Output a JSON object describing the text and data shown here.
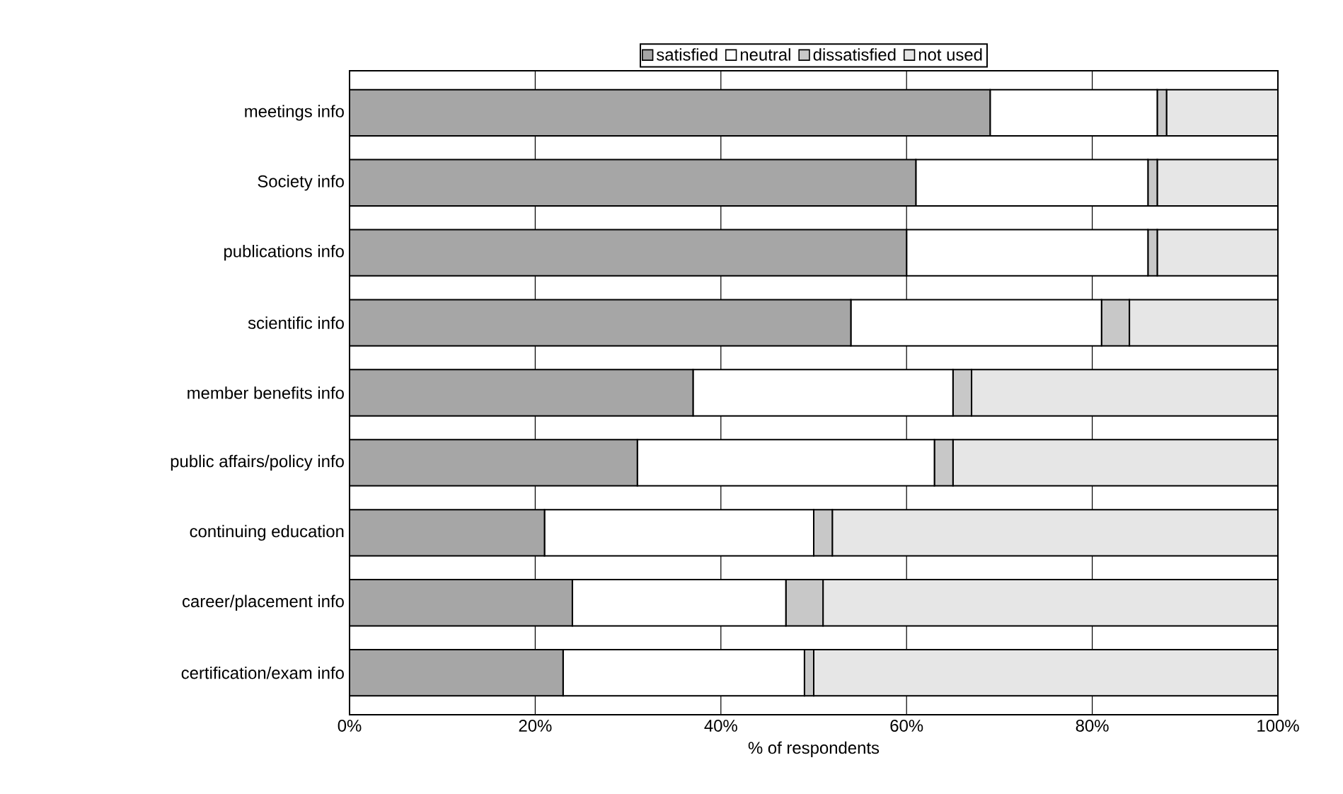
{
  "chart_data": {
    "type": "bar",
    "orientation": "horizontal",
    "stacked": true,
    "xlabel": "% of respondents",
    "categories": [
      "meetings info",
      "Society info",
      "publications info",
      "scientific info",
      "member benefits info",
      "public affairs/policy info",
      "continuing education",
      "career/placement info",
      "certification/exam info"
    ],
    "series": [
      {
        "name": "satisfied",
        "color": "#a6a6a6",
        "values": [
          69,
          61,
          60,
          54,
          37,
          31,
          21,
          24,
          23
        ]
      },
      {
        "name": "neutral",
        "color": "#ffffff",
        "values": [
          18,
          25,
          26,
          27,
          28,
          32,
          29,
          23,
          26
        ]
      },
      {
        "name": "dissatisfied",
        "color": "#c8c8c8",
        "values": [
          1,
          1,
          1,
          3,
          2,
          2,
          2,
          4,
          1
        ]
      },
      {
        "name": "not used",
        "color": "#e6e6e6",
        "values": [
          12,
          13,
          13,
          16,
          33,
          35,
          48,
          49,
          50
        ]
      }
    ],
    "xlim": [
      0,
      100
    ],
    "xticks": [
      {
        "value": 0,
        "label": "0%"
      },
      {
        "value": 20,
        "label": "20%"
      },
      {
        "value": 40,
        "label": "40%"
      },
      {
        "value": 60,
        "label": "60%"
      },
      {
        "value": 80,
        "label": "80%"
      },
      {
        "value": 100,
        "label": "100%"
      }
    ],
    "grid": "x",
    "legend": "top"
  }
}
